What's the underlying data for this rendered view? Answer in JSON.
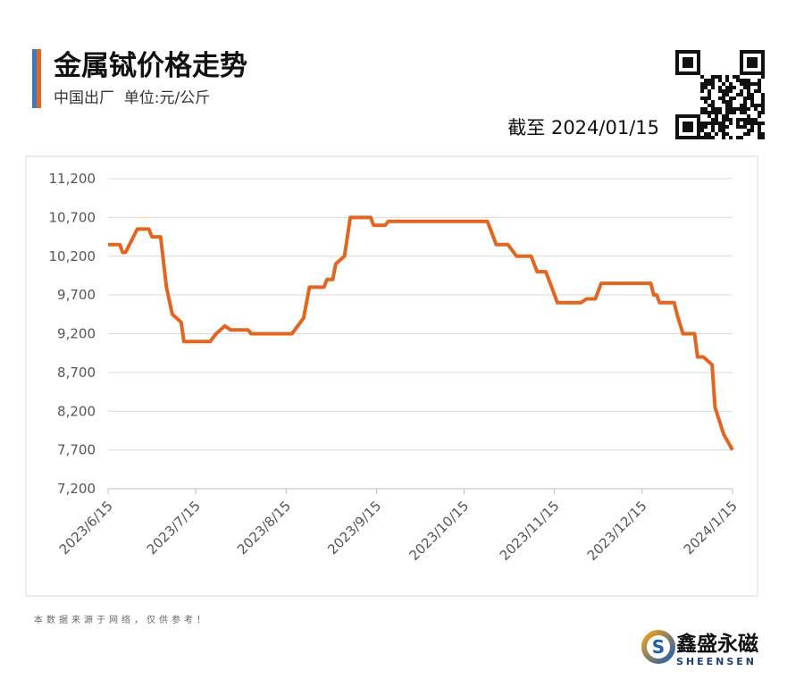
{
  "chart_data": {
    "type": "line",
    "title": "金属铽价格走势",
    "subtitle": "中国出厂  单位:元/公斤",
    "as_of": "截至 2024/01/15",
    "source_note": "本数据来源于网络，仅供参考！",
    "brand": "鑫盛永磁",
    "brand_en": "SHEENSEN",
    "color": "#e2661f",
    "x": [
      "2023/6/15",
      "2023/6/19",
      "2023/6/20",
      "2023/6/21",
      "2023/6/25",
      "2023/6/29",
      "2023/6/30",
      "2023/7/3",
      "2023/7/5",
      "2023/7/7",
      "2023/7/10",
      "2023/7/11",
      "2023/7/20",
      "2023/7/22",
      "2023/7/25",
      "2023/7/27",
      "2023/8/2",
      "2023/8/3",
      "2023/8/17",
      "2023/8/21",
      "2023/8/23",
      "2023/8/28",
      "2023/8/29",
      "2023/8/31",
      "2023/9/1",
      "2023/9/4",
      "2023/9/6",
      "2023/9/13",
      "2023/9/14",
      "2023/9/18",
      "2023/9/19",
      "2023/10/23",
      "2023/10/25",
      "2023/10/26",
      "2023/10/30",
      "2023/10/31",
      "2023/11/2",
      "2023/11/7",
      "2023/11/8",
      "2023/11/9",
      "2023/11/12",
      "2023/11/14",
      "2023/11/16",
      "2023/11/24",
      "2023/11/26",
      "2023/11/29",
      "2023/12/1",
      "2023/12/18",
      "2023/12/19",
      "2023/12/20",
      "2023/12/21",
      "2023/12/26",
      "2023/12/27",
      "2023/12/29",
      "2024/1/2",
      "2024/1/3",
      "2024/1/5",
      "2024/1/8",
      "2024/1/9",
      "2024/1/12",
      "2024/1/15"
    ],
    "values": [
      10350,
      10350,
      10250,
      10250,
      10550,
      10550,
      10450,
      10450,
      9800,
      9450,
      9350,
      9100,
      9100,
      9200,
      9300,
      9250,
      9250,
      9200,
      9200,
      9400,
      9800,
      9800,
      9900,
      9900,
      10100,
      10200,
      10700,
      10700,
      10600,
      10600,
      10650,
      10650,
      10450,
      10350,
      10350,
      10300,
      10200,
      10200,
      10100,
      10000,
      10000,
      9800,
      9600,
      9600,
      9650,
      9650,
      9850,
      9850,
      9700,
      9700,
      9600,
      9600,
      9450,
      9200,
      9200,
      8900,
      8900,
      8800,
      8250,
      7900,
      7700
    ],
    "xlim": [
      "2023/6/15",
      "2024/1/15"
    ],
    "xticks": [
      "2023/6/15",
      "2023/7/15",
      "2023/8/15",
      "2023/9/15",
      "2023/10/15",
      "2023/11/15",
      "2023/12/15",
      "2024/1/15"
    ],
    "ylim": [
      7200,
      11200
    ],
    "yticks": [
      {
        "value": 7200,
        "label": "7,200"
      },
      {
        "value": 7700,
        "label": "7,700"
      },
      {
        "value": 8200,
        "label": "8,200"
      },
      {
        "value": 8700,
        "label": "8,700"
      },
      {
        "value": 9200,
        "label": "9,200"
      },
      {
        "value": 9700,
        "label": "9,700"
      },
      {
        "value": 10200,
        "label": "10,200"
      },
      {
        "value": 10700,
        "label": "10,700"
      },
      {
        "value": 11200,
        "label": "11,200"
      }
    ],
    "grid": true
  }
}
